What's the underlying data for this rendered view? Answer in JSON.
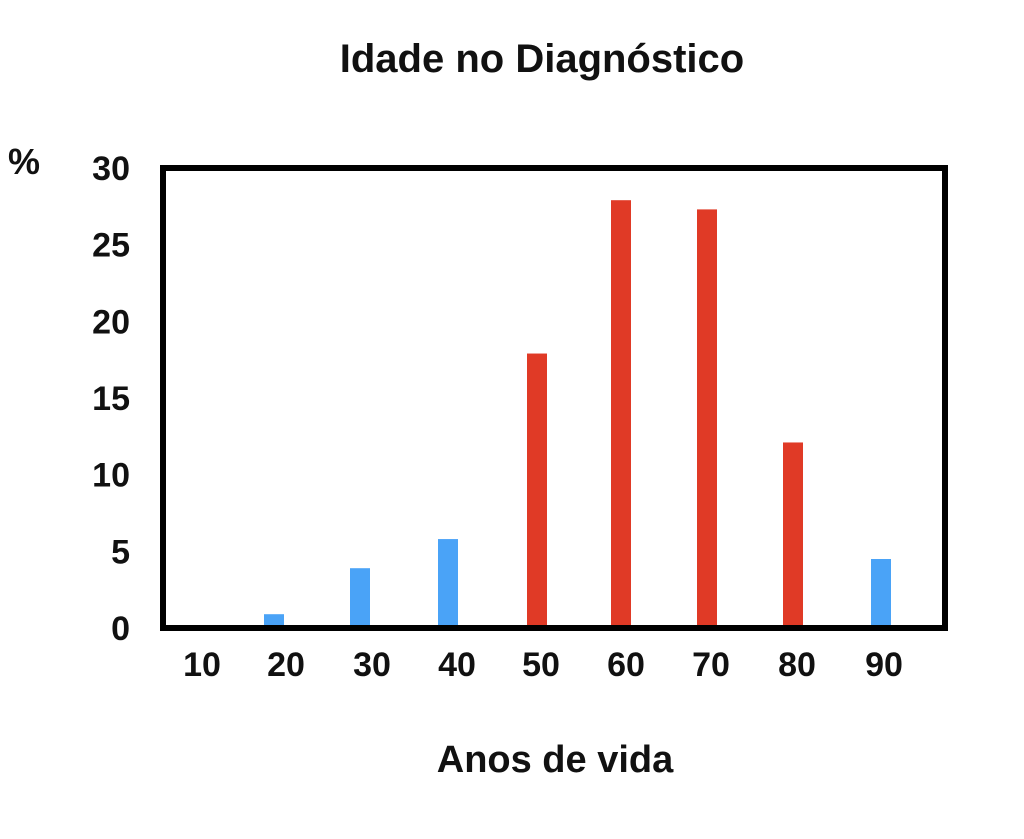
{
  "chart_data": {
    "type": "bar",
    "title": "Idade no Diagnóstico",
    "xlabel": "Anos de vida",
    "ylabel": "%",
    "ylim": [
      0,
      30
    ],
    "yticks": [
      "0",
      "5",
      "10",
      "15",
      "20",
      "25",
      "30"
    ],
    "categories": [
      "10",
      "20",
      "30",
      "40",
      "50",
      "60",
      "70",
      "80",
      "90"
    ],
    "values": [
      0,
      0.9,
      3.9,
      5.8,
      17.9,
      27.9,
      27.3,
      12.1,
      4.5
    ],
    "bar_colors": [
      "#4aa3f7",
      "#4aa3f7",
      "#4aa3f7",
      "#4aa3f7",
      "#e03a26",
      "#e03a26",
      "#e03a26",
      "#e03a26",
      "#4aa3f7"
    ],
    "grid": false,
    "legend": false
  }
}
